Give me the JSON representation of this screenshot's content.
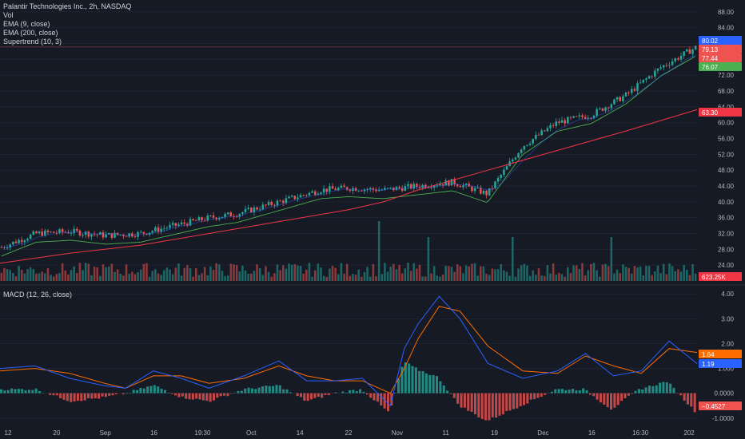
{
  "header": {
    "title": "Palantir Technologies Inc., 2h, NASDAQ",
    "indicators": [
      "Vol",
      "EMA (9, close)",
      "EMA (200, close)",
      "Supertrend (10, 3)"
    ],
    "macd_title": "MACD (12, 26, close)"
  },
  "colors": {
    "background": "#161a25",
    "up": "#26a69a",
    "down": "#ef5350",
    "ema200": "#f23645",
    "supertrend": "#4caf50",
    "macd_line": "#2962ff",
    "signal_line": "#ff6d00",
    "grid": "#1f2330"
  },
  "chart_data": [
    {
      "type": "line",
      "title": "Palantir Technologies Inc., 2h, NASDAQ",
      "x_ticks": [
        "12",
        "20",
        "Sep",
        "16",
        "19:30",
        "Oct",
        "14",
        "22",
        "Nov",
        "11",
        "19",
        "Dec",
        "16",
        "16:30",
        "202"
      ],
      "y_ticks": [
        "24.00",
        "28.00",
        "32.00",
        "36.00",
        "40.00",
        "44.00",
        "48.00",
        "52.00",
        "56.00",
        "60.00",
        "64.00",
        "68.00",
        "72.00",
        "76.00",
        "80.00",
        "84.00",
        "88.00"
      ],
      "ylim": [
        20,
        90
      ],
      "close_path": {
        "x": [
          0,
          5,
          10,
          15,
          20,
          25,
          30,
          34,
          38,
          42,
          46,
          50,
          55,
          60,
          65,
          70,
          75,
          80,
          85,
          90,
          95,
          100
        ],
        "y": [
          28.5,
          32,
          32.5,
          31.5,
          32,
          34,
          36,
          37,
          39,
          41,
          43,
          43.5,
          43,
          44,
          45,
          42,
          54,
          60,
          62,
          67,
          74,
          79
        ]
      },
      "ema200": {
        "x": [
          0,
          10,
          20,
          30,
          40,
          50,
          55,
          60,
          70,
          80,
          90,
          100
        ],
        "y": [
          24.5,
          27,
          29,
          32,
          35,
          38,
          40,
          43,
          48,
          53,
          58,
          63.3
        ]
      },
      "price_badges": [
        {
          "label": "80.02",
          "value": 80.02,
          "color": "#2962ff"
        },
        {
          "label": "79.13",
          "value": 79.13,
          "color": "#ef5350"
        },
        {
          "label": "77.44",
          "value": 77.44,
          "color": "#ef5350"
        },
        {
          "label": "76.07",
          "value": 76.07,
          "color": "#4caf50"
        },
        {
          "label": "63.30",
          "value": 63.3,
          "color": "#f23645"
        },
        {
          "label": "623.25K",
          "value": 623250,
          "color": "#f23645"
        }
      ]
    },
    {
      "type": "line",
      "title": "MACD (12, 26, close)",
      "y_ticks": [
        "-1.0000",
        "0.0000",
        "1.000",
        "2.00",
        "3.00",
        "4.00"
      ],
      "ylim": [
        -1.2,
        4.2
      ],
      "macd": {
        "x": [
          0,
          5,
          10,
          15,
          18,
          22,
          26,
          30,
          35,
          40,
          44,
          48,
          52,
          56,
          58,
          60,
          63,
          66,
          70,
          75,
          80,
          84,
          88,
          92,
          96,
          100
        ],
        "y": [
          1.0,
          1.1,
          0.6,
          0.3,
          0.2,
          0.9,
          0.6,
          0.2,
          0.7,
          1.3,
          0.5,
          0.5,
          0.6,
          -0.5,
          1.8,
          2.8,
          3.9,
          3.0,
          1.2,
          0.6,
          0.9,
          1.6,
          0.7,
          0.9,
          2.1,
          1.19
        ]
      },
      "signal": {
        "x": [
          0,
          5,
          10,
          15,
          18,
          22,
          26,
          30,
          35,
          40,
          44,
          48,
          52,
          56,
          58,
          60,
          63,
          66,
          70,
          75,
          80,
          84,
          88,
          92,
          96,
          100
        ],
        "y": [
          0.9,
          1.0,
          0.8,
          0.4,
          0.2,
          0.7,
          0.7,
          0.4,
          0.6,
          1.1,
          0.7,
          0.5,
          0.5,
          0.0,
          1.0,
          2.2,
          3.5,
          3.3,
          1.9,
          0.9,
          0.8,
          1.5,
          1.1,
          0.8,
          1.8,
          1.64
        ]
      },
      "value_badges": [
        {
          "label": "1.64",
          "value": 1.64,
          "color": "#ff6d00"
        },
        {
          "label": "1.19",
          "value": 1.19,
          "color": "#2962ff"
        },
        {
          "label": "−0.4527",
          "value": -0.4527,
          "color": "#ef5350"
        }
      ]
    }
  ]
}
